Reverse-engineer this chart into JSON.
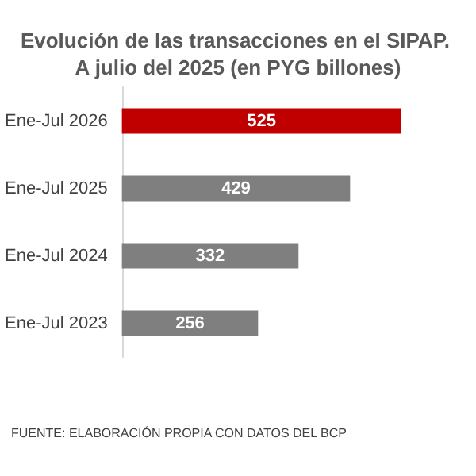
{
  "chart_data": {
    "type": "bar",
    "orientation": "horizontal",
    "title": "Evolución de las transacciones en el SIPAP. A julio del 2025 (en PYG billones)",
    "categories": [
      "Ene-Jul 2026",
      "Ene-Jul 2025",
      "Ene-Jul 2024",
      "Ene-Jul 2023"
    ],
    "values": [
      525,
      429,
      332,
      256
    ],
    "colors": [
      "#c00000",
      "#7f7f7f",
      "#7f7f7f",
      "#7f7f7f"
    ],
    "data_labels": true,
    "annotations": [
      "FUENTE: ELABORACIÓN PROPIA CON DATOS DEL BCP"
    ]
  }
}
